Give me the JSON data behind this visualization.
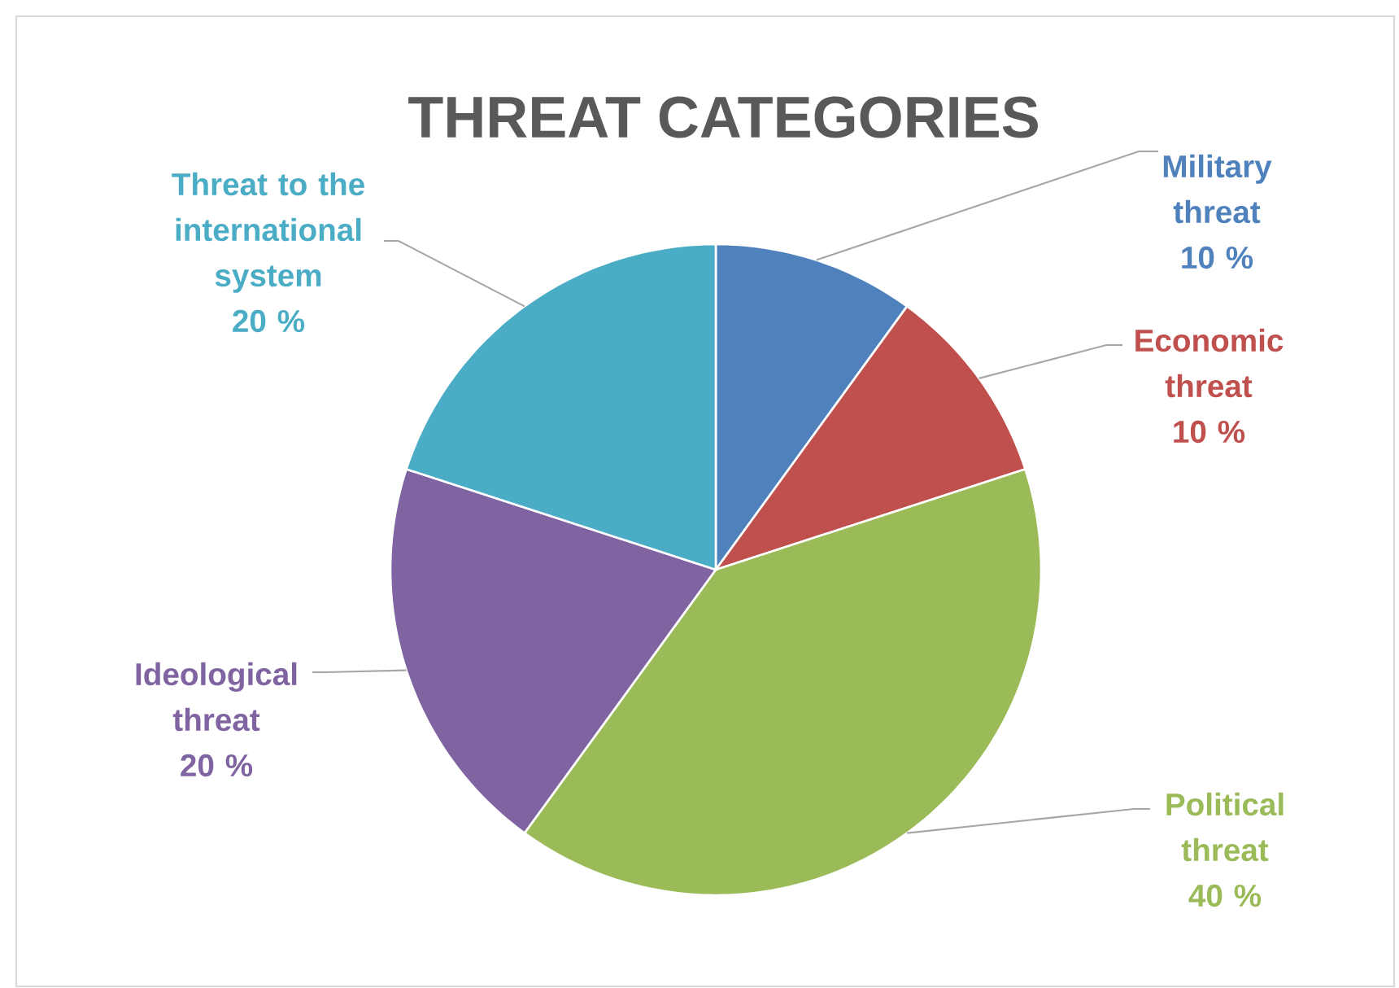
{
  "chart_data": {
    "type": "pie",
    "title": "THREAT CATEGORIES",
    "categories": [
      "Military threat",
      "Economic threat",
      "Political threat",
      "Ideological threat",
      "Threat to the international system"
    ],
    "values": [
      10,
      10,
      40,
      20,
      20
    ],
    "value_labels": [
      "10 %",
      "10 %",
      "40 %",
      "20 %",
      "20 %"
    ],
    "colors": [
      "#4f81bd",
      "#c0504d",
      "#9bbb59",
      "#8064a2",
      "#4bacc6"
    ]
  }
}
